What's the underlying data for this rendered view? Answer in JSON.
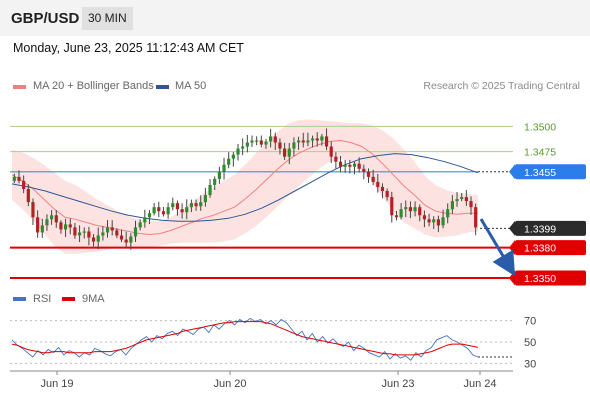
{
  "header": {
    "symbol": "GBP/USD",
    "timeframe": "30 MIN"
  },
  "timestamp": "Monday, June 23, 2025 11:12:43 AM CET",
  "legend": {
    "ma20_bb": {
      "label": "MA 20 + Bollinger Bands",
      "color": "#f08080"
    },
    "ma50": {
      "label": "MA 50",
      "color": "#2f5597"
    },
    "rsi": {
      "label": "RSI",
      "color": "#4472c4"
    },
    "rsi_ma": {
      "label": "9MA",
      "color": "#e00000"
    }
  },
  "credit": "Research © 2025 Trading Central",
  "levels": [
    {
      "value": "1.3500",
      "style": "thin-green"
    },
    {
      "value": "1.3475",
      "style": "thin-green"
    },
    {
      "value": "1.3455",
      "style": "pivot-blue"
    },
    {
      "value": "1.3399",
      "style": "current-dark"
    },
    {
      "value": "1.3380",
      "style": "support-red"
    },
    {
      "value": "1.3350",
      "style": "support-red"
    }
  ],
  "chart_data": [
    {
      "type": "candlestick",
      "series_names": [
        "MA 20 + Bollinger Bands",
        "MA 50"
      ],
      "x_ticks": [
        "Jun 19",
        "Jun 20",
        "Jun 23",
        "Jun 24"
      ],
      "y_ticks": [
        "1.3500",
        "1.3475",
        "1.3455",
        "1.3399",
        "1.3380",
        "1.3350"
      ],
      "ylim": [
        1.3345,
        1.353
      ],
      "last_price": 1.3399,
      "forecast_target": 1.335,
      "close_path": [
        1.345,
        1.3446,
        1.3438,
        1.3425,
        1.341,
        1.3395,
        1.3402,
        1.3408,
        1.3412,
        1.3405,
        1.3398,
        1.3403,
        1.34,
        1.3392,
        1.3395,
        1.3396,
        1.339,
        1.3386,
        1.3392,
        1.3395,
        1.34,
        1.3397,
        1.3392,
        1.3388,
        1.3385,
        1.3391,
        1.34,
        1.3405,
        1.341,
        1.3414,
        1.342,
        1.3416,
        1.3413,
        1.342,
        1.3424,
        1.3418,
        1.3415,
        1.342,
        1.3424,
        1.3421,
        1.3425,
        1.3432,
        1.3442,
        1.3448,
        1.3455,
        1.3462,
        1.3468,
        1.3472,
        1.3478,
        1.348,
        1.3484,
        1.3486,
        1.3486,
        1.3482,
        1.3485,
        1.349,
        1.3484,
        1.3478,
        1.347,
        1.3478,
        1.3484,
        1.3486,
        1.3484,
        1.3486,
        1.3488,
        1.3486,
        1.349,
        1.348,
        1.347,
        1.3465,
        1.346,
        1.3462,
        1.346,
        1.3463,
        1.3458,
        1.3455,
        1.345,
        1.3445,
        1.344,
        1.3436,
        1.343,
        1.3412,
        1.341,
        1.3418,
        1.342,
        1.3416,
        1.342,
        1.3412,
        1.3408,
        1.3405,
        1.3408,
        1.3402,
        1.341,
        1.3418,
        1.3426,
        1.3428,
        1.343,
        1.3426,
        1.342,
        1.34
      ],
      "ma20": [
        1.3452,
        1.3446,
        1.3438,
        1.3428,
        1.3418,
        1.341,
        1.3408,
        1.3405,
        1.3402,
        1.34,
        1.3398,
        1.3396,
        1.3394,
        1.3393,
        1.3394,
        1.3397,
        1.3401,
        1.3405,
        1.3409,
        1.3412,
        1.3416,
        1.342,
        1.3428,
        1.3437,
        1.3447,
        1.3457,
        1.3466,
        1.3473,
        1.3478,
        1.3482,
        1.3485,
        1.3486,
        1.3484,
        1.348,
        1.3473,
        1.3463,
        1.3452,
        1.3441,
        1.3432,
        1.3422,
        1.3416,
        1.3414,
        1.3413,
        1.3414,
        1.3414
      ],
      "bb_width": [
        0.0025,
        0.0028,
        0.0031,
        0.0034,
        0.0036,
        0.0036,
        0.0034,
        0.003,
        0.0026,
        0.0022,
        0.0018,
        0.0015,
        0.0014,
        0.0013,
        0.0012,
        0.0013,
        0.0016,
        0.002,
        0.0024,
        0.0027,
        0.003,
        0.0032,
        0.0034,
        0.0036,
        0.0037,
        0.0037,
        0.0036,
        0.0033,
        0.0029,
        0.0024,
        0.002,
        0.0018,
        0.0019,
        0.0023,
        0.0028,
        0.0033,
        0.0036,
        0.0036,
        0.0033,
        0.0029,
        0.0026,
        0.0023,
        0.0021,
        0.0019,
        0.0018
      ],
      "ma50": [
        1.3443,
        1.344,
        1.3436,
        1.3431,
        1.3426,
        1.3421,
        1.3416,
        1.3412,
        1.3409,
        1.3407,
        1.3406,
        1.3406,
        1.3407,
        1.3409,
        1.3413,
        1.3419,
        1.3427,
        1.3436,
        1.3445,
        1.3454,
        1.3462,
        1.3468,
        1.3471,
        1.3473,
        1.3472,
        1.3469,
        1.3465,
        1.346,
        1.3454
      ]
    },
    {
      "type": "line",
      "series": [
        {
          "name": "RSI"
        },
        {
          "name": "9MA"
        }
      ],
      "y_ticks": [
        "70",
        "50",
        "30"
      ],
      "ylim": [
        22,
        78
      ],
      "rsi": [
        52,
        47,
        44,
        40,
        36,
        42,
        38,
        43,
        40,
        45,
        38,
        42,
        40,
        36,
        40,
        38,
        44,
        42,
        39,
        37,
        41,
        43,
        38,
        44,
        48,
        52,
        55,
        50,
        56,
        53,
        58,
        60,
        56,
        62,
        60,
        57,
        62,
        64,
        59,
        66,
        62,
        67,
        70,
        66,
        71,
        68,
        72,
        69,
        71,
        67,
        70,
        66,
        71,
        68,
        62,
        56,
        60,
        52,
        58,
        50,
        55,
        49,
        53,
        48,
        46,
        50,
        42,
        47,
        44,
        40,
        38,
        36,
        41,
        34,
        39,
        35,
        37,
        33,
        40,
        36,
        42,
        45,
        52,
        54,
        56,
        52,
        50,
        47,
        44,
        38,
        36
      ],
      "ma9": [
        48,
        47,
        45,
        43,
        42,
        41,
        40,
        40,
        41,
        41,
        41,
        40,
        40,
        40,
        40,
        40,
        41,
        41,
        41,
        41,
        42,
        43,
        44,
        46,
        48,
        50,
        52,
        53,
        54,
        55,
        56,
        57,
        58,
        60,
        61,
        62,
        63,
        64,
        65,
        66,
        67,
        68,
        68,
        69,
        69,
        69,
        69,
        69,
        69,
        68,
        67,
        65,
        63,
        61,
        59,
        57,
        55,
        54,
        53,
        52,
        51,
        50,
        49,
        48,
        47,
        46,
        45,
        44,
        43,
        42,
        41,
        40,
        39,
        39,
        38,
        38,
        38,
        38,
        38,
        39,
        40,
        41,
        43,
        45,
        47,
        48,
        48,
        48,
        47,
        46,
        45
      ]
    }
  ]
}
